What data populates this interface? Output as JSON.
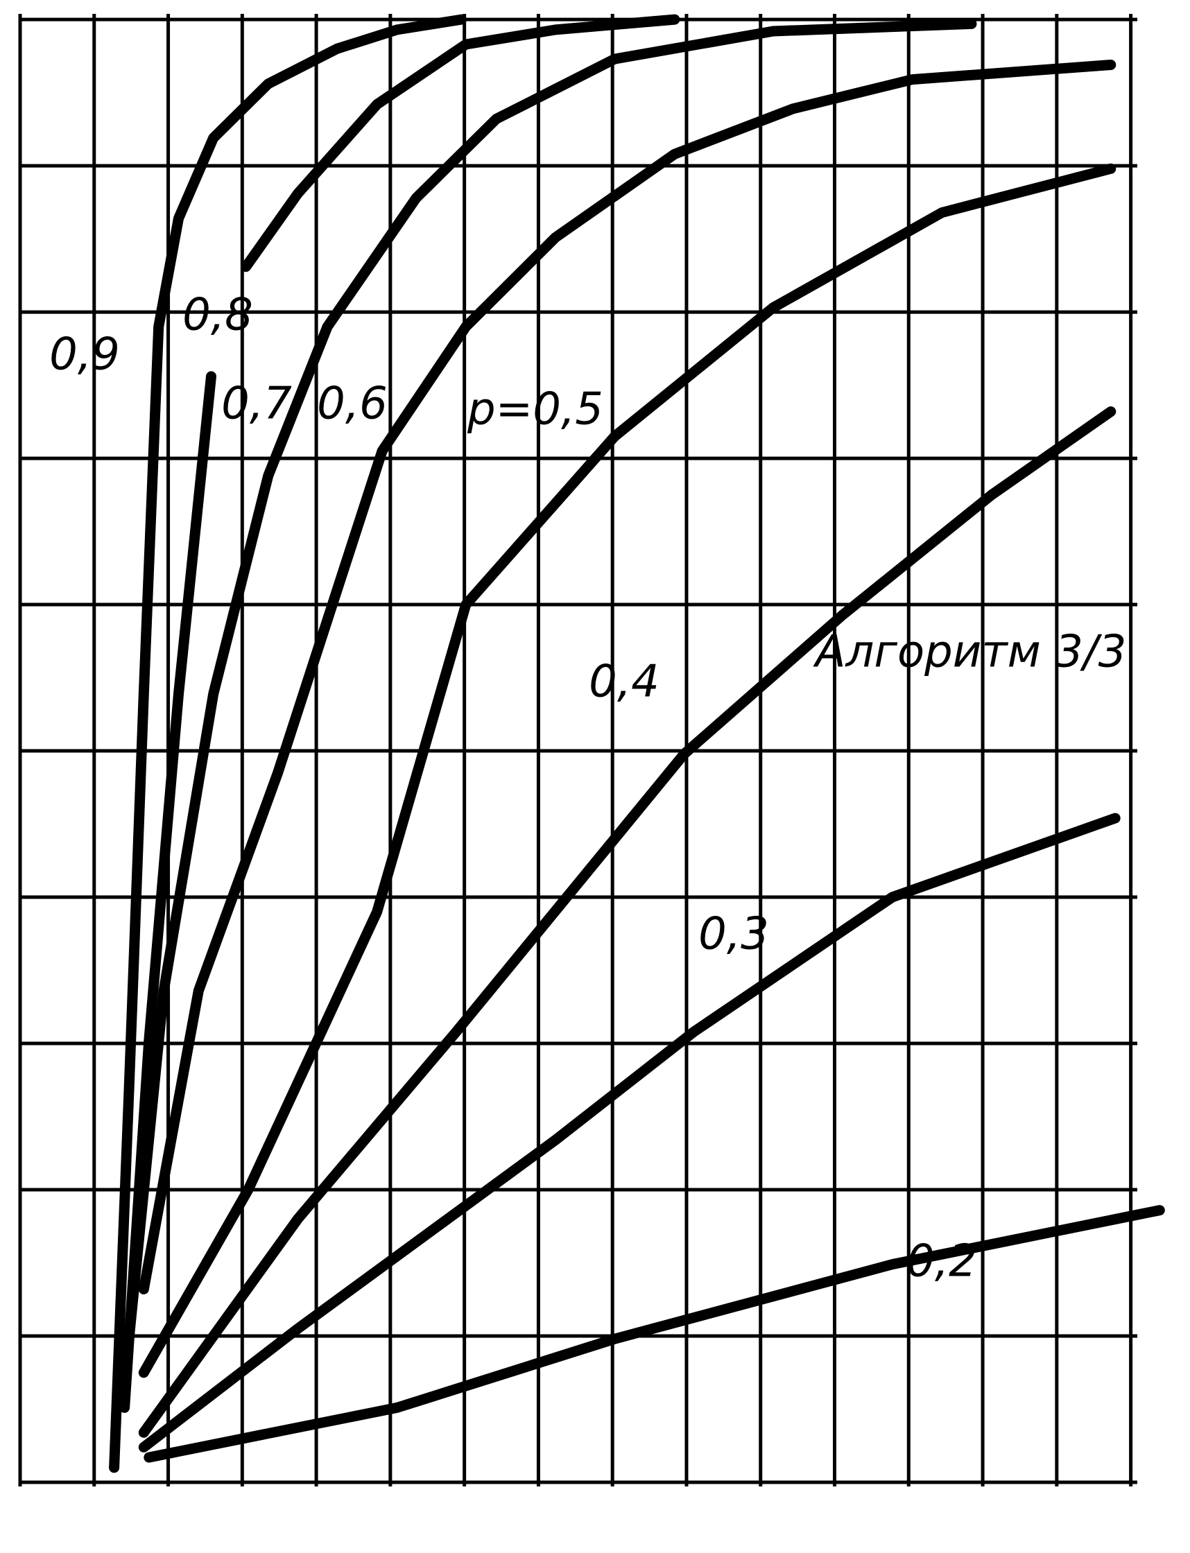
{
  "chart_data": {
    "type": "line",
    "annotation": "Алгоритм 3/3",
    "xlim": [
      0,
      15.5
    ],
    "ylim": [
      0,
      10.1
    ],
    "grid": true,
    "color": "#000000",
    "series": [
      {
        "name": "0,9",
        "color": "#000000",
        "x": [
          1.27,
          1.47,
          1.67,
          1.87,
          2.14,
          2.61,
          3.35,
          4.28,
          5.09,
          5.96
        ],
        "values": [
          0.1,
          2.68,
          5.39,
          7.9,
          8.64,
          9.19,
          9.56,
          9.8,
          9.93,
          10.0
        ]
      },
      {
        "name": "0,8",
        "color": "#000000",
        "x": [
          1.41,
          1.74,
          2.14,
          2.58,
          null,
          3.05,
          3.75,
          4.82,
          6.02,
          7.23,
          8.84
        ],
        "values": [
          0.51,
          3.02,
          5.39,
          7.56,
          null,
          8.31,
          8.81,
          9.42,
          9.83,
          9.93,
          10.0
        ]
      },
      {
        "name": "0,7",
        "color": "#000000",
        "x": [
          1.47,
          1.94,
          2.61,
          3.35,
          4.15,
          5.35,
          6.43,
          8.03,
          10.17,
          12.85
        ],
        "values": [
          0.98,
          3.36,
          5.39,
          6.88,
          7.9,
          8.78,
          9.32,
          9.73,
          9.92,
          9.97
        ]
      },
      {
        "name": "0,6",
        "color": "#000000",
        "x": [
          1.67,
          2.41,
          3.48,
          4.89,
          6.02,
          7.23,
          8.84,
          10.44,
          12.05,
          14.73
        ],
        "values": [
          1.32,
          3.36,
          4.85,
          7.05,
          7.9,
          8.51,
          9.08,
          9.39,
          9.59,
          9.69
        ]
      },
      {
        "name": "р=0,5",
        "color": "#000000",
        "x": [
          1.67,
          3.08,
          4.82,
          6.02,
          8.03,
          10.17,
          12.45,
          14.73
        ],
        "values": [
          0.75,
          2.0,
          3.9,
          6.0,
          7.15,
          8.03,
          8.68,
          8.98
        ]
      },
      {
        "name": "0,4",
        "color": "#000000",
        "x": [
          1.67,
          3.75,
          5.89,
          8.97,
          11.11,
          13.12,
          14.73
        ],
        "values": [
          0.34,
          1.8,
          3.08,
          4.98,
          5.93,
          6.75,
          7.32
        ]
      },
      {
        "name": "0,3",
        "color": "#000000",
        "x": [
          1.67,
          3.75,
          7.23,
          9.1,
          11.78,
          14.79
        ],
        "values": [
          0.24,
          1.05,
          2.34,
          3.08,
          4.0,
          4.54
        ]
      },
      {
        "name": "0,2",
        "color": "#000000",
        "x": [
          1.74,
          5.09,
          8.03,
          11.78,
          15.39
        ],
        "values": [
          0.17,
          0.51,
          0.98,
          1.49,
          1.86
        ]
      }
    ]
  }
}
